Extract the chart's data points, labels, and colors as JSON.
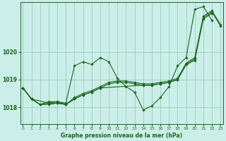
{
  "bg_color": "#cceee8",
  "line_color": "#1a6620",
  "grid_color": "#99ccbb",
  "title": "Graphe pression niveau de la mer (hPa)",
  "xlabel_ticks": [
    0,
    1,
    2,
    3,
    4,
    5,
    6,
    7,
    8,
    9,
    10,
    11,
    12,
    13,
    14,
    15,
    16,
    17,
    18,
    19,
    20,
    21,
    22,
    23
  ],
  "yticks": [
    1018,
    1019,
    1020
  ],
  "ylim": [
    1017.4,
    1021.8
  ],
  "xlim": [
    -0.3,
    23.3
  ],
  "series": [
    {
      "x": [
        0,
        1,
        2,
        3,
        4,
        5,
        6,
        7,
        8,
        9,
        10,
        11,
        12,
        13,
        14,
        15,
        16,
        17,
        18,
        19,
        20,
        21,
        22,
        23
      ],
      "y": [
        1018.7,
        1018.3,
        1018.1,
        1018.2,
        1018.2,
        1018.15,
        1019.5,
        1019.65,
        1019.55,
        1019.8,
        1019.65,
        1019.05,
        1018.75,
        1018.55,
        1017.9,
        1018.05,
        1018.35,
        1018.75,
        1019.5,
        1019.8,
        1021.55,
        1021.65,
        1021.15,
        null
      ]
    },
    {
      "x": [
        0,
        1,
        2,
        3,
        4,
        5,
        6,
        7,
        8,
        9,
        10,
        11,
        12,
        13,
        14,
        15,
        16,
        17,
        18,
        19,
        20,
        21,
        22,
        23
      ],
      "y": [
        1018.7,
        1018.3,
        1018.1,
        1018.15,
        1018.15,
        1018.1,
        1018.35,
        1018.5,
        1018.6,
        1018.75,
        1018.9,
        1018.95,
        1018.95,
        1018.9,
        1018.85,
        1018.85,
        1018.9,
        1018.95,
        1019.05,
        1019.6,
        1019.8,
        1021.3,
        1021.5,
        1021.0
      ]
    },
    {
      "x": [
        0,
        1,
        2,
        3,
        4,
        5,
        6,
        7,
        8,
        9,
        10,
        11,
        12,
        13,
        14,
        15,
        16,
        17,
        18,
        19,
        20,
        21,
        22,
        23
      ],
      "y": [
        1018.7,
        1018.3,
        1018.1,
        1018.1,
        1018.15,
        1018.1,
        1018.3,
        1018.45,
        1018.55,
        1018.7,
        1018.85,
        1018.9,
        1018.9,
        1018.85,
        1018.8,
        1018.8,
        1018.85,
        1018.9,
        1019.0,
        1019.55,
        1019.75,
        1021.25,
        1021.45,
        1020.95
      ]
    },
    {
      "x": [
        0,
        1,
        3,
        4,
        5,
        6,
        7,
        8,
        9,
        14,
        15,
        16,
        17,
        18,
        19,
        20,
        21,
        22
      ],
      "y": [
        1018.7,
        1018.3,
        1018.15,
        1018.2,
        1018.1,
        1018.3,
        1018.45,
        1018.55,
        1018.7,
        1018.8,
        1018.8,
        1018.85,
        1018.9,
        1019.0,
        1019.55,
        1019.7,
        1021.2,
        1021.4
      ]
    }
  ]
}
